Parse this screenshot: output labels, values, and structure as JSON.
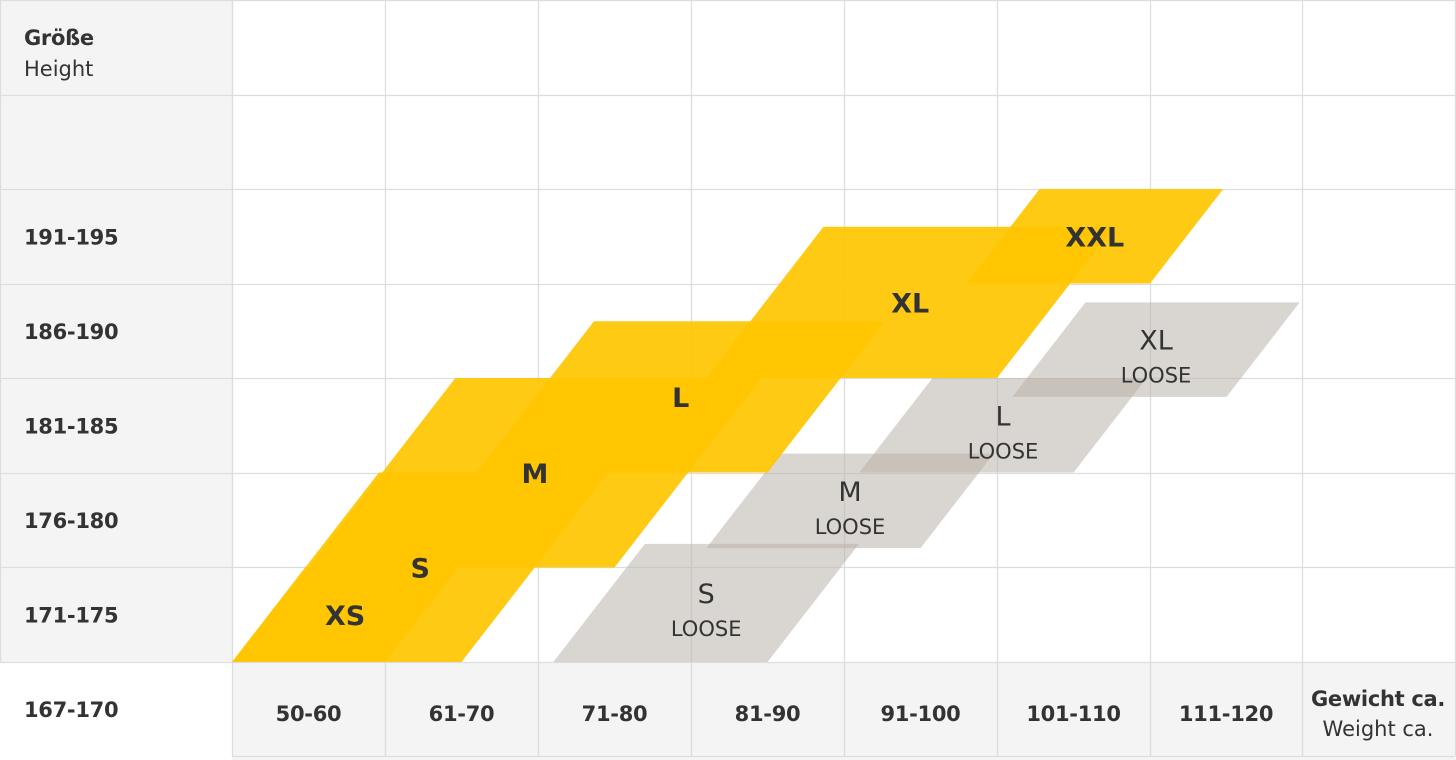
{
  "chart_data": {
    "type": "heatmap",
    "title": "",
    "y_header": {
      "primary": "Größe",
      "secondary": "Height"
    },
    "x_header": {
      "primary": "Gewicht ca.",
      "secondary": "Weight ca."
    },
    "height_rows": [
      "167-170",
      "171-175",
      "176-180",
      "181-185",
      "186-190",
      "191-195"
    ],
    "weight_columns": [
      "50-60",
      "61-70",
      "71-80",
      "81-90",
      "91-100",
      "101-110",
      "111-120"
    ],
    "colors": {
      "regular": "#FFC600",
      "loose": "#B9B3AA",
      "grid": "#DDDDDD",
      "header_bg": "#F4F4F4",
      "text": "#333333"
    },
    "sizes": [
      {
        "label": "XS",
        "variant": "",
        "fit": "regular",
        "weight": [
          50,
          60
        ],
        "height": [
          167,
          170
        ]
      },
      {
        "label": "S",
        "variant": "",
        "fit": "regular",
        "weight": [
          50,
          65
        ],
        "height": [
          167,
          175
        ]
      },
      {
        "label": "M",
        "variant": "",
        "fit": "regular",
        "weight": [
          55,
          75
        ],
        "height": [
          171,
          180
        ]
      },
      {
        "label": "L",
        "variant": "",
        "fit": "regular",
        "weight": [
          66,
          85
        ],
        "height": [
          176,
          183
        ]
      },
      {
        "label": "XL",
        "variant": "",
        "fit": "regular",
        "weight": [
          81,
          100
        ],
        "height": [
          181,
          188
        ]
      },
      {
        "label": "XXL",
        "variant": "",
        "fit": "regular",
        "weight": [
          98,
          110
        ],
        "height": [
          186,
          190
        ]
      },
      {
        "label": "S",
        "variant": "LOOSE",
        "fit": "loose",
        "weight": [
          71,
          85
        ],
        "height": [
          167,
          171
        ]
      },
      {
        "label": "M",
        "variant": "LOOSE",
        "fit": "loose",
        "weight": [
          81,
          95
        ],
        "height": [
          172,
          176
        ]
      },
      {
        "label": "L",
        "variant": "LOOSE",
        "fit": "loose",
        "weight": [
          91,
          105
        ],
        "height": [
          176,
          180
        ]
      },
      {
        "label": "XL",
        "variant": "LOOSE",
        "fit": "loose",
        "weight": [
          101,
          115
        ],
        "height": [
          180,
          184
        ]
      }
    ]
  }
}
